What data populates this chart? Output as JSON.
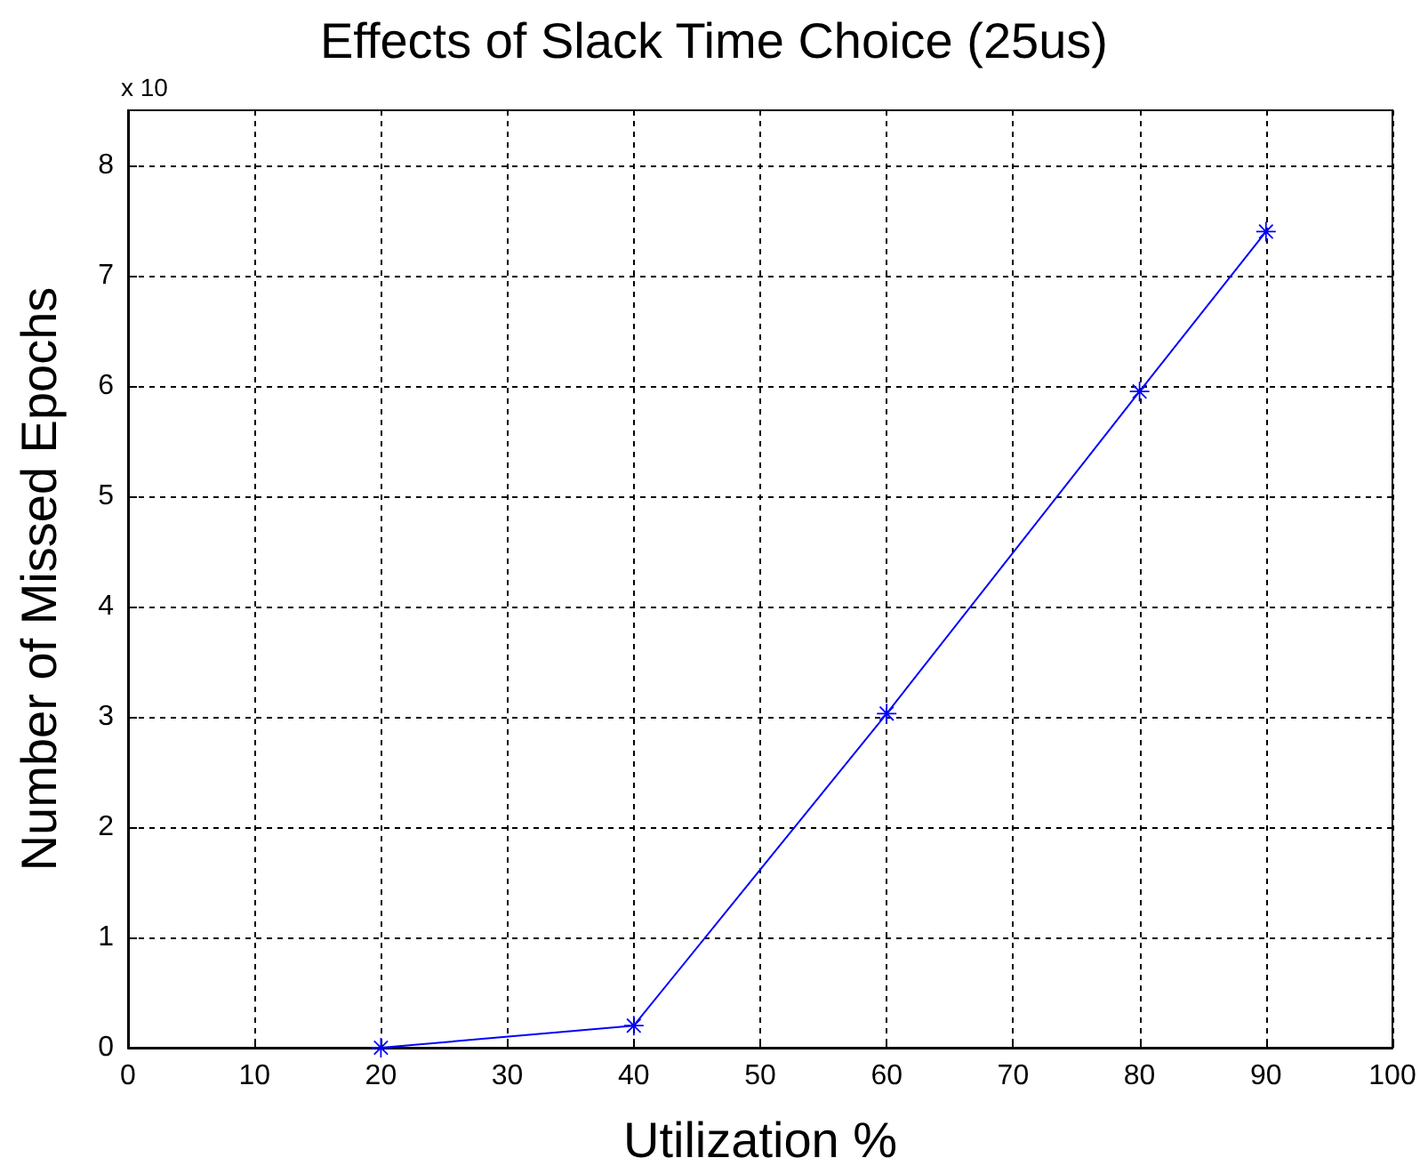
{
  "chart_data": {
    "type": "line",
    "title": "Effects of Slack Time Choice (25us)",
    "xlabel": "Utilization %",
    "ylabel": "Number of Missed Epochs",
    "annotations": [
      "x 10"
    ],
    "x": [
      20,
      40,
      60,
      80,
      90
    ],
    "series": [
      {
        "color": "#0000ff",
        "values": [
          0,
          0.2,
          3.03,
          5.95,
          7.4
        ]
      }
    ],
    "xlim": [
      0,
      100
    ],
    "xticks": [
      0,
      10,
      20,
      30,
      40,
      50,
      60,
      70,
      80,
      90,
      100
    ],
    "ylim": [
      0,
      8.5
    ],
    "yticks": [
      0,
      1,
      2,
      3,
      4,
      5,
      6,
      7,
      8
    ],
    "grid": true,
    "marker": "star",
    "line_style": "solid"
  }
}
